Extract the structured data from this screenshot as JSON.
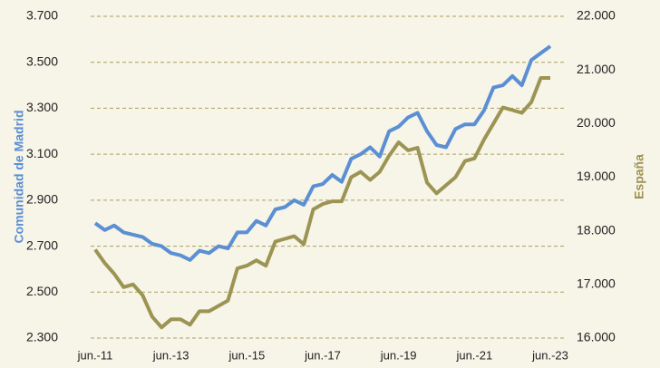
{
  "chart_data": {
    "type": "line",
    "y_label": "Comunidad de Madrid",
    "y2_label": "España",
    "categories": [
      "jun.-11",
      null,
      null,
      null,
      null,
      null,
      null,
      null,
      "jun.-13",
      null,
      null,
      null,
      null,
      null,
      null,
      null,
      "jun.-15",
      null,
      null,
      null,
      null,
      null,
      null,
      null,
      "jun.-17",
      null,
      null,
      null,
      null,
      null,
      null,
      null,
      "jun.-19",
      null,
      null,
      null,
      null,
      null,
      null,
      null,
      "jun.-21",
      null,
      null,
      null,
      null,
      null,
      null,
      null,
      "jun.-23"
    ],
    "series": [
      {
        "name": "Comunidad de Madrid",
        "color": "#5b8fd4",
        "values": [
          2800,
          2770,
          2790,
          2760,
          2750,
          2740,
          2710,
          2700,
          2670,
          2660,
          2640,
          2680,
          2670,
          2700,
          2690,
          2760,
          2760,
          2810,
          2790,
          2860,
          2870,
          2900,
          2880,
          2960,
          2970,
          3010,
          2980,
          3080,
          3100,
          3130,
          3090,
          3200,
          3220,
          3260,
          3280,
          3200,
          3140,
          3130,
          3210,
          3230,
          3230,
          3290,
          3390,
          3400,
          3440,
          3400,
          3510,
          3540,
          3570
        ]
      },
      {
        "name": "España",
        "color": "#9c9452",
        "axis": "y2",
        "values": [
          17650,
          17400,
          17200,
          16950,
          17000,
          16800,
          16400,
          16200,
          16350,
          16350,
          16250,
          16500,
          16500,
          16600,
          16700,
          17300,
          17350,
          17450,
          17350,
          17800,
          17850,
          17900,
          17750,
          18400,
          18500,
          18550,
          18550,
          19000,
          19100,
          18950,
          19100,
          19400,
          19650,
          19500,
          19550,
          18900,
          18700,
          18850,
          19000,
          19300,
          19350,
          19700,
          20000,
          20300,
          20250,
          20200,
          20400,
          20850,
          20850
        ]
      }
    ],
    "ylim": [
      2300,
      3700
    ],
    "yticks": [
      {
        "value": 2300,
        "label": "2.300"
      },
      {
        "value": 2500,
        "label": "2.500"
      },
      {
        "value": 2700,
        "label": "2.700"
      },
      {
        "value": 2900,
        "label": "2.900"
      },
      {
        "value": 3100,
        "label": "3.100"
      },
      {
        "value": 3300,
        "label": "3.300"
      },
      {
        "value": 3500,
        "label": "3.500"
      },
      {
        "value": 3700,
        "label": "3.700"
      }
    ],
    "y2lim": [
      16000,
      22000
    ],
    "y2ticks": [
      {
        "value": 16000,
        "label": "16.000"
      },
      {
        "value": 17000,
        "label": "17.000"
      },
      {
        "value": 18000,
        "label": "18.000"
      },
      {
        "value": 19000,
        "label": "19.000"
      },
      {
        "value": 20000,
        "label": "20.000"
      },
      {
        "value": 21000,
        "label": "21.000"
      },
      {
        "value": 22000,
        "label": "22.000"
      }
    ],
    "grid": true
  }
}
